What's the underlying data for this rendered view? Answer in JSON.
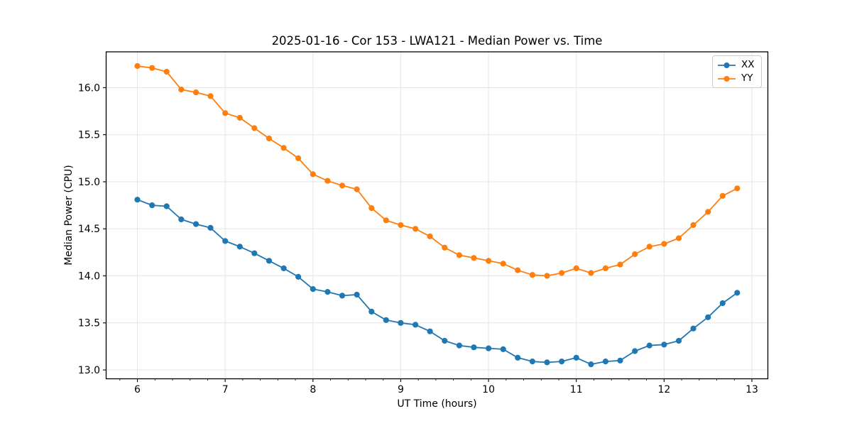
{
  "chart_data": {
    "type": "line",
    "title": "2025-01-16 - Cor 153 - LWA121 - Median Power vs. Time",
    "xlabel": "UT Time (hours)",
    "ylabel": "Median Power (CPU)",
    "xlim": [
      5.644,
      13.182
    ],
    "ylim": [
      12.906,
      16.381
    ],
    "xticks": [
      6,
      7,
      8,
      9,
      10,
      11,
      12,
      13
    ],
    "x_minor_tick_step": 0.2,
    "yticks": [
      13.0,
      13.5,
      14.0,
      14.5,
      15.0,
      15.5,
      16.0
    ],
    "grid": true,
    "grid_color": "#e6e6e6",
    "legend_position": "upper right",
    "x": [
      6,
      6.167,
      6.333,
      6.5,
      6.667,
      6.833,
      7,
      7.167,
      7.333,
      7.5,
      7.667,
      7.833,
      8,
      8.167,
      8.333,
      8.5,
      8.667,
      8.833,
      9,
      9.167,
      9.333,
      9.5,
      9.667,
      9.833,
      10,
      10.167,
      10.333,
      10.5,
      10.667,
      10.833,
      11,
      11.167,
      11.333,
      11.5,
      11.667,
      11.833,
      12,
      12.167,
      12.333,
      12.5,
      12.667,
      12.833
    ],
    "series": [
      {
        "name": "XX",
        "color": "#1f77b4",
        "values": [
          14.81,
          14.75,
          14.74,
          14.6,
          14.55,
          14.51,
          14.37,
          14.31,
          14.24,
          14.16,
          14.08,
          13.99,
          13.86,
          13.83,
          13.79,
          13.8,
          13.62,
          13.53,
          13.5,
          13.48,
          13.41,
          13.31,
          13.26,
          13.24,
          13.23,
          13.22,
          13.13,
          13.09,
          13.08,
          13.09,
          13.13,
          13.06,
          13.09,
          13.1,
          13.2,
          13.26,
          13.27,
          13.31,
          13.44,
          13.56,
          13.71,
          13.82
        ]
      },
      {
        "name": "YY",
        "color": "#ff7f0e",
        "values": [
          16.23,
          16.21,
          16.17,
          15.98,
          15.95,
          15.91,
          15.73,
          15.68,
          15.57,
          15.46,
          15.36,
          15.25,
          15.08,
          15.01,
          14.96,
          14.92,
          14.72,
          14.59,
          14.54,
          14.5,
          14.42,
          14.3,
          14.22,
          14.19,
          14.16,
          14.13,
          14.06,
          14.01,
          14.0,
          14.03,
          14.08,
          14.03,
          14.08,
          14.12,
          14.23,
          14.31,
          14.34,
          14.4,
          14.54,
          14.68,
          14.85,
          14.93
        ]
      }
    ]
  }
}
